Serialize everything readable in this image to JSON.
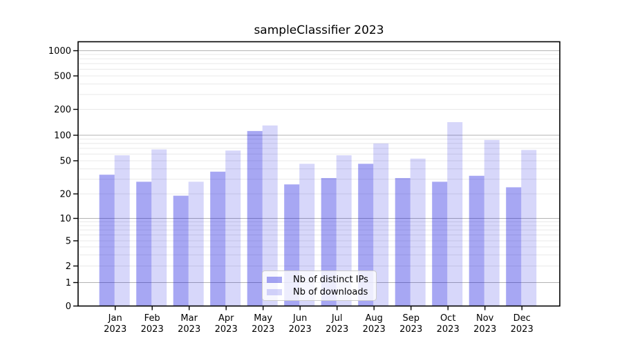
{
  "chart_data": {
    "type": "bar",
    "title": "sampleClassifier 2023",
    "categories": [
      "Jan",
      "Feb",
      "Mar",
      "Apr",
      "May",
      "Jun",
      "Jul",
      "Aug",
      "Sep",
      "Oct",
      "Nov",
      "Dec"
    ],
    "category_year": "2023",
    "series": [
      {
        "name": "Nb of distinct IPs",
        "color": "#0202dd",
        "alpha": 0.35,
        "values": [
          34,
          28,
          19,
          37,
          112,
          26,
          31,
          46,
          31,
          28,
          33,
          24
        ]
      },
      {
        "name": "Nb of downloads",
        "color": "#0202dd",
        "alpha": 0.155,
        "values": [
          58,
          68,
          28,
          66,
          130,
          46,
          58,
          80,
          53,
          142,
          88,
          67
        ]
      }
    ],
    "yscale": "symlog",
    "y_ticks": [
      0,
      1,
      2,
      5,
      10,
      20,
      50,
      100,
      200,
      500,
      1000
    ],
    "ylim": [
      0,
      1280
    ],
    "xlabel": "",
    "ylabel": "",
    "grid": true,
    "legend_position": "lower center"
  },
  "colors": {
    "major_grid": "#b3b3b3",
    "minor_grid": "#e8e8e8",
    "spine": "#000000",
    "text": "#000000"
  }
}
